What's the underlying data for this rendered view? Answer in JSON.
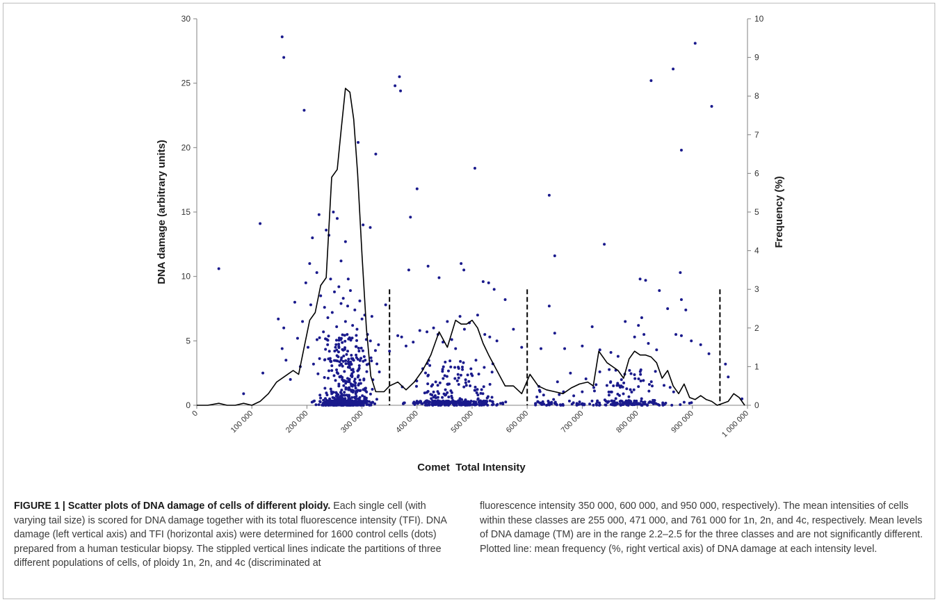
{
  "chart_data": {
    "type": "scatter",
    "x_axis": {
      "label": "Comet  Total Intensity",
      "range": [
        0,
        1000000
      ],
      "ticks": [
        0,
        100000,
        200000,
        300000,
        400000,
        500000,
        600000,
        700000,
        800000,
        900000,
        1000000
      ],
      "tick_labels": [
        "0",
        "100 000",
        "200 000",
        "300 000",
        "400 000",
        "500 000",
        "600 000",
        "700 000",
        "800 000",
        "900 000",
        "1 000 000"
      ]
    },
    "y_left": {
      "label": "DNA damage (arbitrary units)",
      "range": [
        0,
        30
      ],
      "ticks": [
        0,
        5,
        10,
        15,
        20,
        25,
        30
      ]
    },
    "y_right": {
      "label": "Frequency (%)",
      "range": [
        0,
        10
      ],
      "ticks": [
        0,
        1,
        2,
        3,
        4,
        5,
        6,
        7,
        8,
        9,
        10
      ]
    },
    "grid": false,
    "series": [
      {
        "type": "scatter",
        "axis": "left",
        "color": "#1a1a8c",
        "points": [
          [
            40000,
            10.6
          ],
          [
            115000,
            14.1
          ],
          [
            155000,
            28.6
          ],
          [
            158000,
            27.0
          ],
          [
            195000,
            22.9
          ],
          [
            205000,
            11.0
          ],
          [
            210000,
            13.0
          ],
          [
            222000,
            14.8
          ],
          [
            235000,
            13.6
          ],
          [
            240000,
            13.2
          ],
          [
            248000,
            15.0
          ],
          [
            255000,
            14.5
          ],
          [
            262000,
            11.2
          ],
          [
            270000,
            12.7
          ],
          [
            275000,
            9.8
          ],
          [
            293000,
            20.4
          ],
          [
            302000,
            14.0
          ],
          [
            315000,
            13.8
          ],
          [
            325000,
            19.5
          ],
          [
            360000,
            24.8
          ],
          [
            368000,
            25.5
          ],
          [
            370000,
            24.4
          ],
          [
            388000,
            14.6
          ],
          [
            400000,
            16.8
          ],
          [
            385000,
            10.5
          ],
          [
            420000,
            10.8
          ],
          [
            440000,
            9.9
          ],
          [
            480000,
            11.0
          ],
          [
            485000,
            10.5
          ],
          [
            505000,
            18.4
          ],
          [
            520000,
            9.6
          ],
          [
            530000,
            9.5
          ],
          [
            540000,
            9.0
          ],
          [
            640000,
            16.3
          ],
          [
            650000,
            11.6
          ],
          [
            740000,
            12.5
          ],
          [
            805000,
            9.8
          ],
          [
            815000,
            9.7
          ],
          [
            825000,
            25.2
          ],
          [
            840000,
            8.9
          ],
          [
            865000,
            26.1
          ],
          [
            878000,
            10.3
          ],
          [
            880000,
            19.8
          ],
          [
            880000,
            8.2
          ],
          [
            888000,
            7.4
          ],
          [
            905000,
            28.1
          ],
          [
            935000,
            23.2
          ],
          [
            915000,
            4.7
          ],
          [
            930000,
            4.0
          ],
          [
            960000,
            3.2
          ],
          [
            965000,
            2.2
          ],
          [
            990000,
            0.5
          ],
          [
            85000,
            0.9
          ],
          [
            120000,
            2.5
          ],
          [
            148000,
            6.7
          ],
          [
            155000,
            4.4
          ],
          [
            158000,
            6.0
          ],
          [
            162000,
            3.5
          ],
          [
            170000,
            2.0
          ],
          [
            178000,
            8.0
          ],
          [
            183000,
            5.2
          ],
          [
            188000,
            3.0
          ],
          [
            192000,
            6.5
          ],
          [
            198000,
            9.5
          ],
          [
            202000,
            4.5
          ],
          [
            207000,
            7.8
          ],
          [
            212000,
            3.2
          ],
          [
            218000,
            10.3
          ],
          [
            225000,
            8.5
          ],
          [
            230000,
            5.7
          ],
          [
            232000,
            7.6
          ],
          [
            238000,
            6.8
          ],
          [
            243000,
            9.8
          ],
          [
            246000,
            7.2
          ],
          [
            250000,
            8.8
          ],
          [
            254000,
            6.1
          ],
          [
            258000,
            9.2
          ],
          [
            262000,
            7.9
          ],
          [
            266000,
            8.3
          ],
          [
            270000,
            6.5
          ],
          [
            274000,
            7.7
          ],
          [
            279000,
            8.9
          ],
          [
            283000,
            6.2
          ],
          [
            287000,
            7.4
          ],
          [
            291000,
            5.9
          ],
          [
            296000,
            8.1
          ],
          [
            300000,
            6.7
          ],
          [
            305000,
            7.0
          ],
          [
            310000,
            5.5
          ],
          [
            318000,
            6.9
          ],
          [
            330000,
            4.7
          ],
          [
            343000,
            7.8
          ],
          [
            350000,
            4.2
          ],
          [
            365000,
            5.4
          ],
          [
            372000,
            5.3
          ],
          [
            380000,
            4.6
          ],
          [
            393000,
            4.9
          ],
          [
            405000,
            5.8
          ],
          [
            418000,
            5.7
          ],
          [
            430000,
            6.0
          ],
          [
            438000,
            5.5
          ],
          [
            447000,
            4.9
          ],
          [
            455000,
            6.5
          ],
          [
            463000,
            5.1
          ],
          [
            470000,
            4.4
          ],
          [
            478000,
            6.9
          ],
          [
            486000,
            5.9
          ],
          [
            495000,
            6.4
          ],
          [
            510000,
            7.0
          ],
          [
            523000,
            5.5
          ],
          [
            532000,
            5.3
          ],
          [
            545000,
            5.0
          ],
          [
            560000,
            8.2
          ],
          [
            575000,
            5.9
          ],
          [
            590000,
            4.5
          ],
          [
            625000,
            4.4
          ],
          [
            640000,
            7.7
          ],
          [
            650000,
            5.6
          ],
          [
            668000,
            4.4
          ],
          [
            700000,
            4.6
          ],
          [
            718000,
            6.1
          ],
          [
            732000,
            4.3
          ],
          [
            752000,
            4.1
          ],
          [
            765000,
            3.8
          ],
          [
            778000,
            6.5
          ],
          [
            795000,
            5.3
          ],
          [
            802000,
            6.2
          ],
          [
            808000,
            6.8
          ],
          [
            812000,
            5.5
          ],
          [
            820000,
            4.8
          ],
          [
            835000,
            4.3
          ],
          [
            855000,
            7.5
          ],
          [
            870000,
            5.5
          ],
          [
            880000,
            5.4
          ],
          [
            898000,
            5.0
          ]
        ]
      },
      {
        "type": "line",
        "axis": "right",
        "color": "#000000",
        "x": [
          0,
          20000,
          40000,
          55000,
          70000,
          85000,
          100000,
          115000,
          130000,
          145000,
          160000,
          175000,
          185000,
          195000,
          205000,
          215000,
          225000,
          235000,
          245000,
          255000,
          262000,
          270000,
          278000,
          285000,
          292000,
          300000,
          308000,
          316000,
          325000,
          340000,
          350000,
          365000,
          380000,
          395000,
          410000,
          425000,
          440000,
          455000,
          470000,
          480000,
          490000,
          500000,
          510000,
          520000,
          530000,
          545000,
          560000,
          575000,
          590000,
          605000,
          620000,
          635000,
          650000,
          665000,
          680000,
          695000,
          710000,
          720000,
          730000,
          745000,
          755000,
          765000,
          775000,
          785000,
          795000,
          805000,
          815000,
          825000,
          835000,
          845000,
          855000,
          865000,
          875000,
          885000,
          895000,
          905000,
          915000,
          925000,
          935000,
          945000,
          955000,
          965000,
          975000,
          985000,
          995000
        ],
        "y": [
          0.0,
          0.0,
          0.05,
          0.0,
          0.0,
          0.05,
          0.0,
          0.1,
          0.3,
          0.6,
          0.75,
          0.9,
          0.8,
          1.5,
          2.2,
          2.4,
          3.1,
          3.3,
          5.9,
          6.1,
          7.1,
          8.2,
          8.1,
          7.4,
          6.0,
          3.9,
          2.0,
          0.75,
          0.35,
          0.35,
          0.5,
          0.6,
          0.4,
          0.6,
          0.9,
          1.3,
          1.9,
          1.5,
          2.2,
          2.1,
          2.1,
          2.2,
          2.0,
          1.6,
          1.3,
          0.9,
          0.5,
          0.5,
          0.3,
          0.8,
          0.5,
          0.4,
          0.35,
          0.3,
          0.45,
          0.55,
          0.6,
          0.5,
          1.4,
          1.1,
          1.0,
          0.9,
          0.7,
          1.2,
          1.4,
          1.3,
          1.3,
          1.25,
          1.1,
          0.7,
          0.9,
          0.5,
          0.3,
          0.55,
          0.2,
          0.15,
          0.25,
          0.15,
          0.1,
          0.0,
          0.05,
          0.1,
          0.3,
          0.2,
          0.0
        ]
      }
    ],
    "partition_lines": [
      {
        "x": 350000,
        "y_top": 9
      },
      {
        "x": 600000,
        "y_top": 9
      },
      {
        "x": 950000,
        "y_top": 9
      }
    ]
  },
  "caption": {
    "title": "FIGURE 1 | Scatter plots of DNA damage of cells of different ploidy.",
    "body_left": "Each single cell (with varying tail size) is scored for DNA damage together with its total fluorescence intensity (TFI). DNA damage (left vertical axis) and TFI (horizontal axis) were determined for 1600 control cells (dots) prepared from a human testicular biopsy. The stippled vertical lines indicate the partitions of three different populations of cells, of ploidy 1n, 2n, and 4c (discriminated at",
    "body_right": "fluorescence intensity 350 000, 600 000, and 950 000, respectively). The mean intensities of cells within these classes are 255 000, 471 000, and 761 000 for 1n, 2n, and 4c, respectively. Mean levels of DNA damage (TM) are in the range 2.2–2.5 for the three classes and are not significantly different. Plotted line: mean frequency (%, right vertical axis) of DNA damage at each intensity level."
  }
}
